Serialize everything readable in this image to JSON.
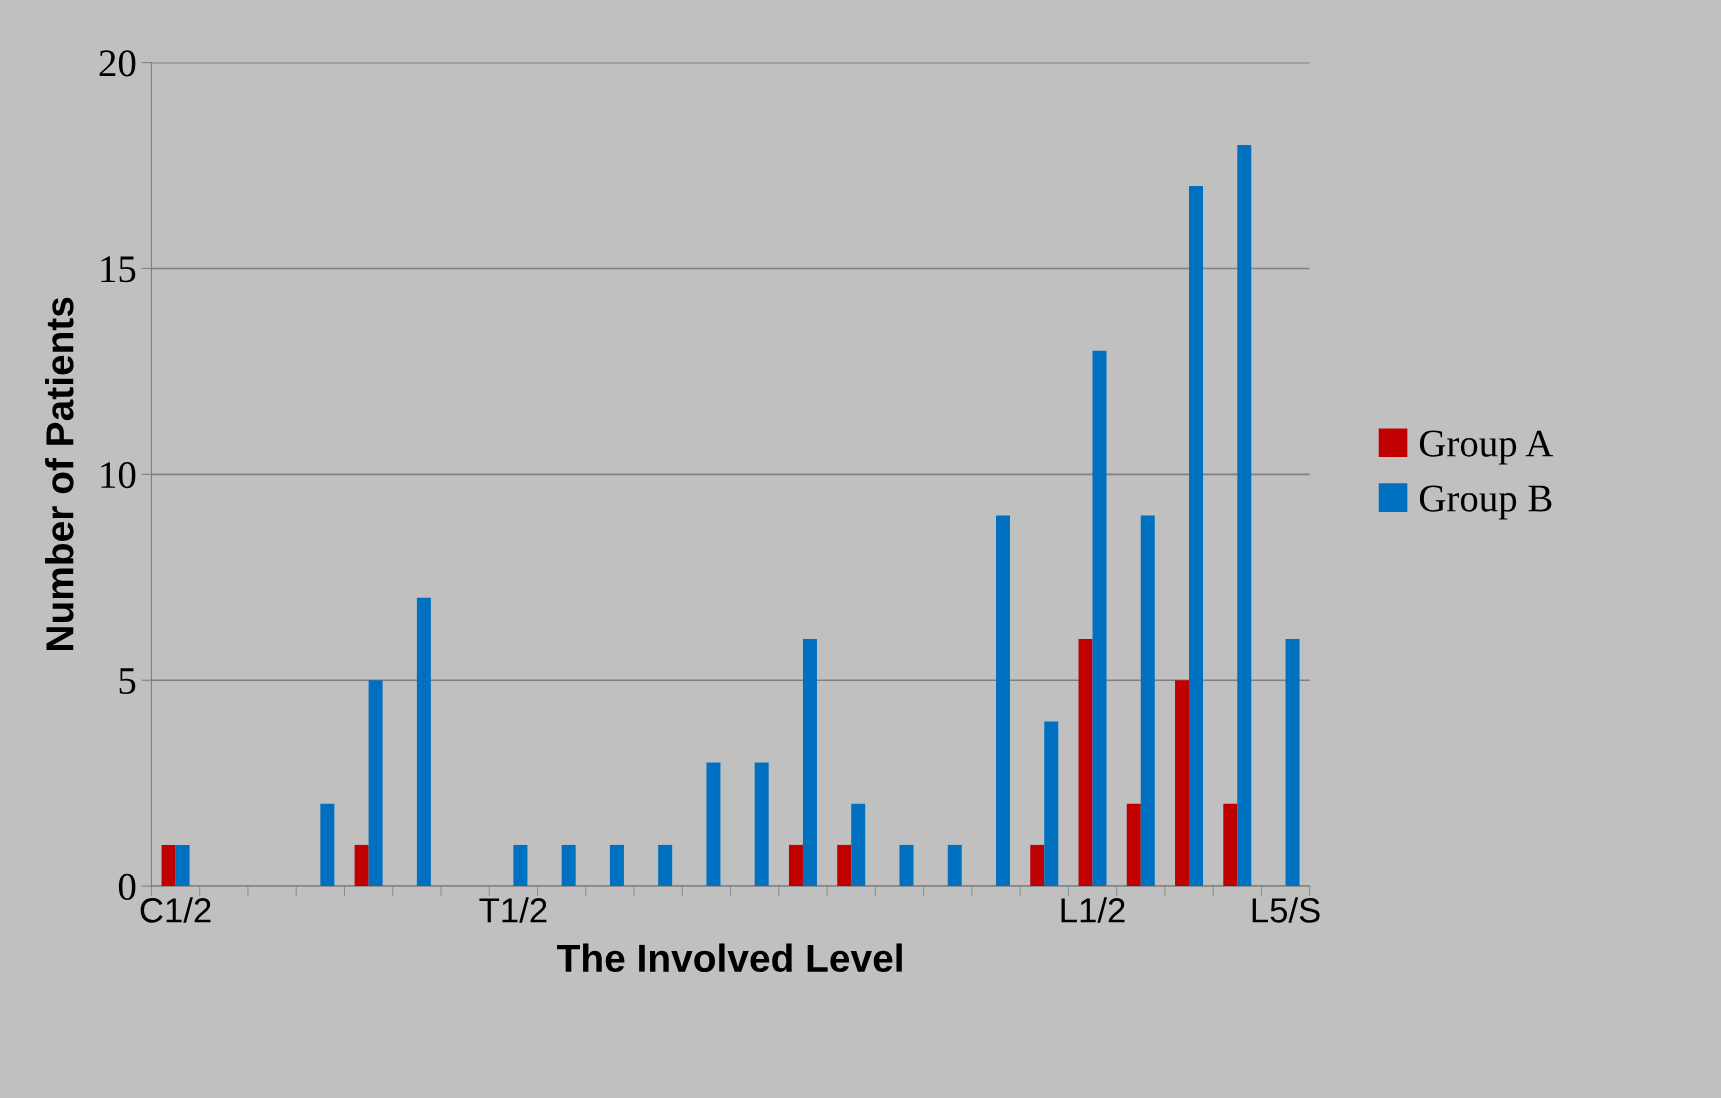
{
  "chart_data": {
    "type": "bar",
    "xlabel": "The Involved Level",
    "ylabel": "Number of Patients",
    "categories": [
      "C1/2",
      null,
      null,
      null,
      null,
      null,
      null,
      "T1/2",
      null,
      null,
      null,
      null,
      null,
      null,
      null,
      null,
      null,
      null,
      null,
      "L1/2",
      null,
      null,
      null,
      "L5/S"
    ],
    "series": [
      {
        "name": "Group A",
        "color": "#c00000",
        "values": [
          1,
          0,
          0,
          0,
          1,
          0,
          0,
          0,
          0,
          0,
          0,
          0,
          0,
          1,
          1,
          0,
          0,
          0,
          1,
          6,
          2,
          5,
          2,
          0
        ]
      },
      {
        "name": "Group B",
        "color": "#0070c0",
        "values": [
          1,
          0,
          0,
          2,
          5,
          7,
          0,
          1,
          1,
          1,
          1,
          3,
          3,
          6,
          2,
          1,
          1,
          9,
          4,
          13,
          9,
          17,
          18,
          6
        ]
      }
    ],
    "ylim": [
      0,
      20
    ],
    "yticks": [
      0,
      5,
      10,
      15,
      20
    ],
    "grid": "y",
    "legend": "right"
  }
}
